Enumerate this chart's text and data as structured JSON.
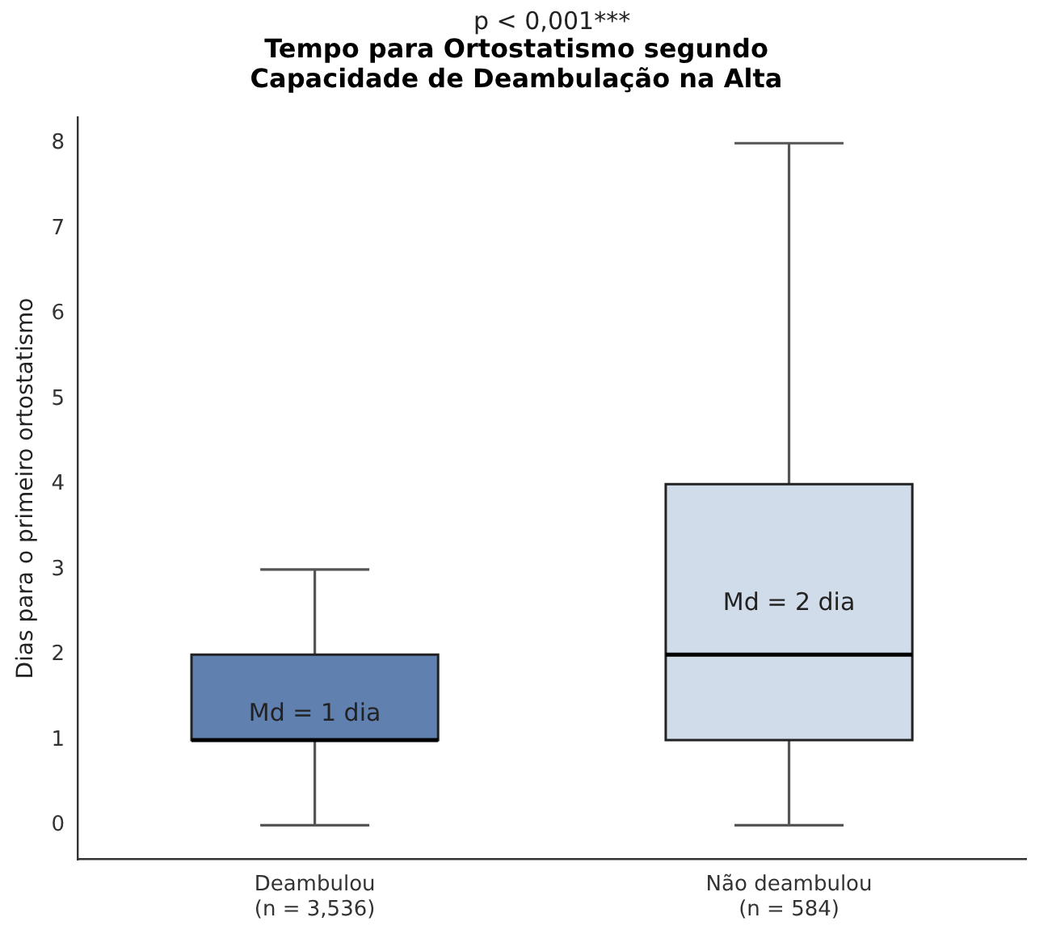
{
  "chart_data": {
    "type": "box",
    "title": "Tempo para Ortostatismo segundo\nCapacidade de Deambulação na Alta",
    "ylabel": "Dias para o primeiro ortostatismo",
    "categories": [
      "Deambulou\n(n = 3,536)",
      "Não deambulou\n(n = 584)"
    ],
    "boxes": [
      {
        "low": 0,
        "q1": 1,
        "median": 1,
        "q3": 2,
        "high": 3
      },
      {
        "low": 0,
        "q1": 1,
        "median": 2,
        "q3": 4,
        "high": 8
      }
    ],
    "colors": [
      "#6080b0",
      "#d0dcea"
    ],
    "ylim": [
      -0.4,
      8.3
    ],
    "yticks": [
      0,
      1,
      2,
      3,
      4,
      5,
      6,
      7,
      8
    ],
    "grid": false,
    "annotations": [
      "p < 0,001***",
      "Md = 1 dia",
      "Md = 2 dia"
    ]
  }
}
